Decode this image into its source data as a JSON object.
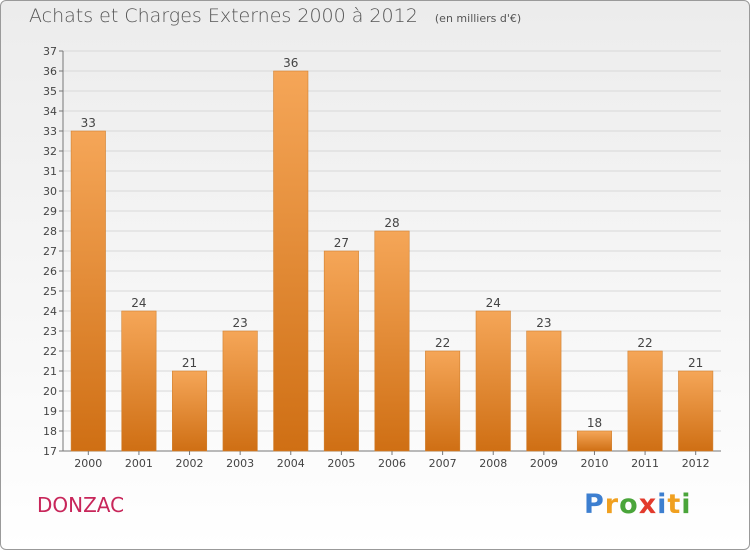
{
  "title": "Achats et Charges Externes 2000 à 2012",
  "unit_note": "(en milliers d'€)",
  "location": "DONZAC",
  "brand": {
    "name": "Proxiti",
    "letters": [
      {
        "ch": "P",
        "color": "#3d7fd0"
      },
      {
        "ch": "r",
        "color": "#f0a020"
      },
      {
        "ch": "o",
        "color": "#4aa53a"
      },
      {
        "ch": "x",
        "color": "#e23a2c"
      },
      {
        "ch": "i",
        "color": "#3d7fd0"
      },
      {
        "ch": "t",
        "color": "#f0a020"
      },
      {
        "ch": "i",
        "color": "#4aa53a"
      }
    ]
  },
  "chart_data": {
    "type": "bar",
    "categories": [
      "2000",
      "2001",
      "2002",
      "2003",
      "2004",
      "2005",
      "2006",
      "2007",
      "2008",
      "2009",
      "2010",
      "2011",
      "2012"
    ],
    "values": [
      33,
      24,
      21,
      23,
      36,
      27,
      28,
      22,
      24,
      23,
      18,
      22,
      21
    ],
    "ylim": [
      17,
      37
    ],
    "yticks": [
      17,
      18,
      19,
      20,
      21,
      22,
      23,
      24,
      25,
      26,
      27,
      28,
      29,
      30,
      31,
      32,
      33,
      34,
      35,
      36,
      37
    ],
    "grid": true,
    "bar_color_top": "#f5a658",
    "bar_color_bottom": "#cf6f14"
  }
}
